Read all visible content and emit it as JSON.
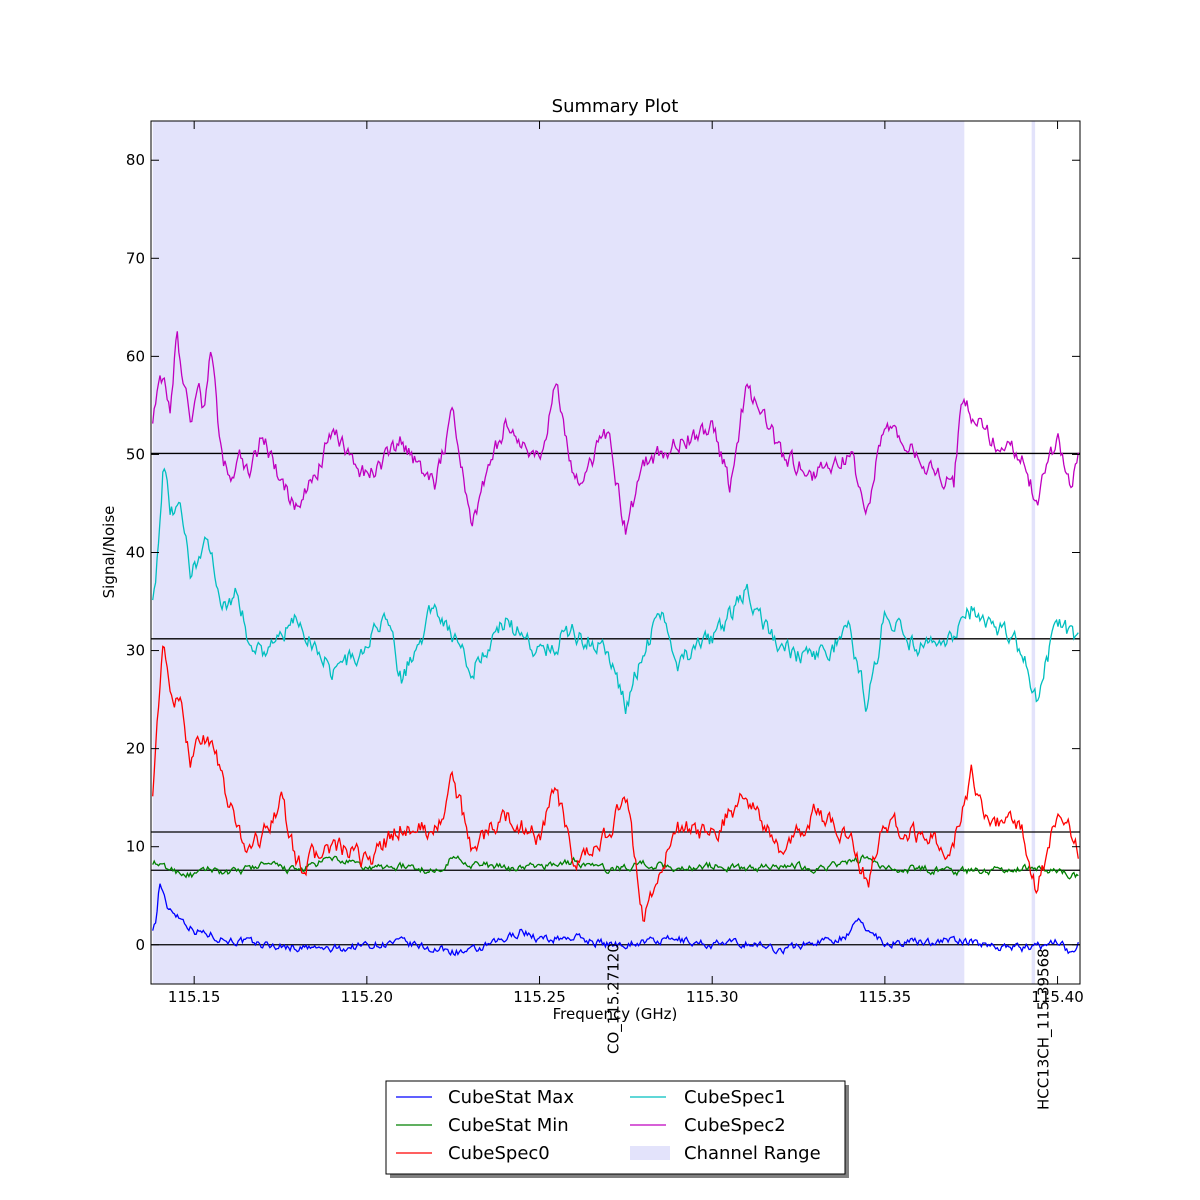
{
  "chart_data": {
    "type": "line",
    "title": "Summary Plot",
    "xlabel": "Frequency (GHz)",
    "ylabel": "Signal/Noise",
    "xlim": [
      115.1375,
      115.4065
    ],
    "ylim": [
      -4,
      84
    ],
    "xticks": [
      {
        "value": 115.15,
        "label": "115.15"
      },
      {
        "value": 115.2,
        "label": "115.20"
      },
      {
        "value": 115.25,
        "label": "115.25"
      },
      {
        "value": 115.3,
        "label": "115.30"
      },
      {
        "value": 115.35,
        "label": "115.35"
      },
      {
        "value": 115.4,
        "label": "115.40"
      }
    ],
    "yticks": [
      {
        "value": 0,
        "label": "0"
      },
      {
        "value": 10,
        "label": "10"
      },
      {
        "value": 20,
        "label": "20"
      },
      {
        "value": 30,
        "label": "30"
      },
      {
        "value": 40,
        "label": "40"
      },
      {
        "value": 50,
        "label": "50"
      },
      {
        "value": 60,
        "label": "60"
      },
      {
        "value": 70,
        "label": "70"
      },
      {
        "value": 80,
        "label": "80"
      }
    ],
    "channel_ranges": [
      [
        115.138,
        115.373
      ],
      [
        115.3925,
        115.3935
      ]
    ],
    "hlines": [
      0,
      7.6,
      11.5,
      31.2,
      50.1
    ],
    "line_markers": [
      {
        "x": 115.2712,
        "label": "CO_115.27120"
      },
      {
        "x": 115.3956,
        "label": "HCC13CH_115.39568"
      }
    ],
    "series": [
      {
        "name": "CubeStat Max",
        "color": "#0000ff",
        "baseline": 0,
        "x": [
          115.138,
          115.139,
          115.14,
          115.142,
          115.144,
          115.146,
          115.15,
          115.155,
          115.16,
          115.17,
          115.18,
          115.19,
          115.2,
          115.21,
          115.22,
          115.23,
          115.24,
          115.245,
          115.25,
          115.26,
          115.27,
          115.28,
          115.29,
          115.3,
          115.31,
          115.32,
          115.33,
          115.34,
          115.342,
          115.35,
          115.36,
          115.37,
          115.38,
          115.39,
          115.395,
          115.4,
          115.404,
          115.406
        ],
        "y": [
          1.8,
          2.5,
          6.5,
          3.8,
          3.5,
          2.8,
          1.5,
          1.0,
          0.5,
          0.0,
          -0.3,
          -0.5,
          0.0,
          0.2,
          -0.5,
          -0.8,
          0.5,
          1.5,
          0.5,
          0.8,
          0.0,
          0.3,
          0.5,
          0.0,
          0.2,
          -0.5,
          0.3,
          1.0,
          2.5,
          0.2,
          0.3,
          0.5,
          0.0,
          -0.3,
          -0.2,
          0.5,
          -1.0,
          0.2
        ]
      },
      {
        "name": "CubeStat Min",
        "color": "#008000",
        "baseline": 7.6,
        "x": [
          115.138,
          115.14,
          115.145,
          115.15,
          115.155,
          115.16,
          115.17,
          115.18,
          115.19,
          115.2,
          115.21,
          115.22,
          115.225,
          115.23,
          115.24,
          115.25,
          115.26,
          115.27,
          115.28,
          115.29,
          115.3,
          115.31,
          115.32,
          115.33,
          115.34,
          115.345,
          115.35,
          115.36,
          115.37,
          115.38,
          115.39,
          115.395,
          115.4,
          115.406
        ],
        "y": [
          8.5,
          8.0,
          7.5,
          7.0,
          7.8,
          7.2,
          8.2,
          7.5,
          8.8,
          7.8,
          8.0,
          7.5,
          9.0,
          8.3,
          7.8,
          8.0,
          8.5,
          7.6,
          8.3,
          7.8,
          8.1,
          7.7,
          8.2,
          7.8,
          8.4,
          9.0,
          7.6,
          7.8,
          7.5,
          7.6,
          7.8,
          7.9,
          7.5,
          7.0
        ]
      },
      {
        "name": "CubeSpec0",
        "color": "#ff0000",
        "baseline": 11.5,
        "x": [
          115.138,
          115.139,
          115.141,
          115.143,
          115.146,
          115.149,
          115.152,
          115.155,
          115.157,
          115.16,
          115.165,
          115.17,
          115.175,
          115.18,
          115.19,
          115.2,
          115.21,
          115.22,
          115.225,
          115.23,
          115.24,
          115.25,
          115.255,
          115.26,
          115.27,
          115.275,
          115.28,
          115.29,
          115.3,
          115.31,
          115.32,
          115.33,
          115.34,
          115.345,
          115.35,
          115.36,
          115.37,
          115.375,
          115.38,
          115.39,
          115.394,
          115.4,
          115.404,
          115.406
        ],
        "y": [
          16.0,
          22.0,
          30.0,
          26.0,
          24.0,
          19.0,
          21.5,
          20.5,
          18.5,
          14.0,
          10.0,
          11.0,
          15.0,
          8.0,
          10.0,
          8.5,
          12.0,
          11.5,
          17.0,
          10.0,
          13.0,
          11.0,
          16.0,
          7.5,
          11.5,
          15.0,
          3.0,
          12.0,
          11.0,
          15.5,
          9.0,
          13.5,
          11.0,
          6.0,
          12.5,
          11.0,
          10.0,
          17.5,
          13.0,
          11.5,
          5.0,
          14.0,
          11.5,
          9.5
        ]
      },
      {
        "name": "CubeSpec1",
        "color": "#00bfbf",
        "baseline": 31.2,
        "x": [
          115.138,
          115.139,
          115.141,
          115.143,
          115.146,
          115.149,
          115.152,
          115.155,
          115.158,
          115.162,
          115.166,
          115.17,
          115.18,
          115.19,
          115.2,
          115.205,
          115.21,
          115.22,
          115.23,
          115.24,
          115.25,
          115.26,
          115.27,
          115.275,
          115.28,
          115.285,
          115.29,
          115.3,
          115.31,
          115.32,
          115.33,
          115.34,
          115.345,
          115.35,
          115.36,
          115.37,
          115.375,
          115.38,
          115.39,
          115.394,
          115.4,
          115.406
        ],
        "y": [
          36.0,
          38.0,
          49.0,
          44.0,
          44.0,
          38.0,
          40.0,
          41.0,
          34.0,
          36.0,
          31.0,
          30.0,
          33.0,
          28.0,
          30.0,
          34.0,
          27.0,
          35.0,
          28.0,
          33.0,
          30.0,
          32.0,
          30.0,
          24.0,
          30.0,
          34.0,
          29.0,
          31.0,
          36.0,
          30.0,
          29.0,
          32.0,
          24.0,
          34.0,
          30.0,
          31.0,
          34.0,
          33.0,
          30.0,
          25.0,
          33.0,
          31.0
        ]
      },
      {
        "name": "CubeSpec2",
        "color": "#bf00bf",
        "baseline": 50.1,
        "x": [
          115.138,
          115.139,
          115.141,
          115.143,
          115.145,
          115.147,
          115.149,
          115.151,
          115.153,
          115.155,
          115.157,
          115.16,
          115.163,
          115.166,
          115.17,
          115.175,
          115.18,
          115.19,
          115.2,
          115.21,
          115.22,
          115.225,
          115.23,
          115.24,
          115.25,
          115.255,
          115.26,
          115.27,
          115.275,
          115.28,
          115.29,
          115.3,
          115.305,
          115.31,
          115.32,
          115.33,
          115.34,
          115.345,
          115.35,
          115.36,
          115.37,
          115.372,
          115.38,
          115.39,
          115.394,
          115.4,
          115.404,
          115.406
        ],
        "y": [
          54.0,
          56.0,
          57.5,
          55.0,
          62.0,
          57.0,
          54.0,
          57.5,
          54.0,
          61.0,
          53.0,
          47.0,
          50.0,
          48.0,
          52.0,
          47.0,
          44.0,
          52.0,
          48.0,
          51.0,
          47.0,
          55.0,
          43.0,
          53.0,
          49.0,
          58.0,
          47.0,
          52.0,
          42.0,
          49.0,
          51.0,
          53.0,
          47.0,
          57.0,
          50.0,
          48.0,
          50.0,
          44.0,
          54.0,
          49.0,
          47.0,
          55.5,
          52.0,
          50.0,
          45.0,
          52.0,
          47.0,
          50.5
        ]
      }
    ],
    "legend": {
      "placement": "below plot",
      "entries": [
        "CubeStat Max",
        "CubeStat Min",
        "CubeSpec0",
        "CubeSpec1",
        "CubeSpec2",
        "Channel Range"
      ],
      "channel_range_color": "#e3e3fb"
    }
  }
}
